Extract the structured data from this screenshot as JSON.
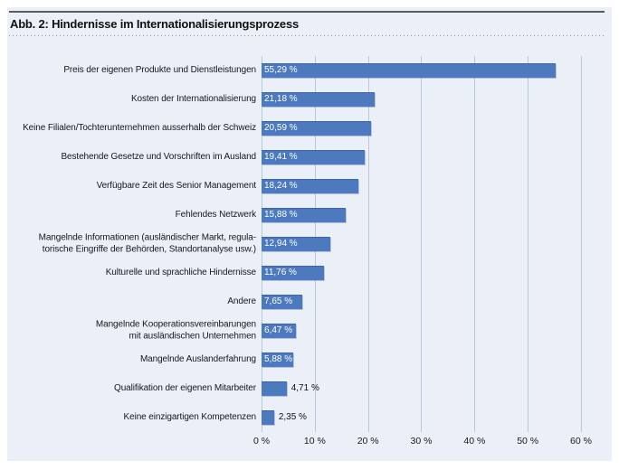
{
  "figure": {
    "title": "Abb. 2: Hindernisse im Internationalisierungsprozess"
  },
  "chart_data": {
    "type": "bar",
    "orientation": "horizontal",
    "title": "Abb. 2: Hindernisse im Internationalisierungsprozess",
    "categories": [
      "Preis der eigenen Produkte und Dienstleistungen",
      "Kosten der Internationalisierung",
      "Keine Filialen/Tochterunternehmen ausserhalb der Schweiz",
      "Bestehende Gesetze und Vorschriften im Ausland",
      "Verfügbare Zeit des Senior Management",
      "Fehlendes Netzwerk",
      "Mangelnde Informationen (ausländischer Markt, regula-\ntorische Eingriffe der Behörden, Standortanalyse usw.)",
      "Kulturelle und sprachliche Hindernisse",
      "Andere",
      "Mangelnde Kooperationsvereinbarungen\nmit ausländischen Unternehmen",
      "Mangelnde Auslanderfahrung",
      "Qualifikation der eigenen Mitarbeiter",
      "Keine einzigartigen Kompetenzen"
    ],
    "values": [
      55.29,
      21.18,
      20.59,
      19.41,
      18.24,
      15.88,
      12.94,
      11.76,
      7.65,
      6.47,
      5.88,
      4.71,
      2.35
    ],
    "value_labels": [
      "55,29 %",
      "21,18 %",
      "20,59 %",
      "19,41 %",
      "18,24 %",
      "15,88 %",
      "12,94 %",
      "11,76 %",
      "7,65 %",
      "6,47 %",
      "5,88 %",
      "4,71 %",
      "2,35 %"
    ],
    "x_ticks": [
      "0 %",
      "10 %",
      "20 %",
      "30 %",
      "40 %",
      "50 %",
      "60 %"
    ],
    "x_tick_values": [
      0,
      10,
      20,
      30,
      40,
      50,
      60
    ],
    "xlim": [
      0,
      60
    ],
    "grid": "vertical-only",
    "legend": "none",
    "colors": {
      "bar": "#4d79bf",
      "bar_label_inside": "#ffffff",
      "bar_label_outside": "#111111",
      "gridline": "#bcc8de",
      "panel_bg": "#eaeff8",
      "title_rule": "#5a5a5a"
    }
  }
}
